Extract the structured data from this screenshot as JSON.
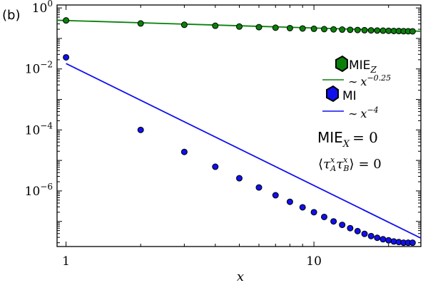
{
  "panel_label": "(b)",
  "chart_data": {
    "type": "scatter",
    "xscale": "log",
    "yscale": "log",
    "xlim": [
      0.92,
      27
    ],
    "ylim": [
      1.5e-08,
      1.25
    ],
    "xlabel": "x",
    "ylabel": "",
    "grid": false,
    "legend_position": "right",
    "x_ticks": [
      {
        "value": 1,
        "label": "1"
      },
      {
        "value": 10,
        "label": "10"
      }
    ],
    "y_ticks": [
      {
        "value": 1,
        "base": "10",
        "exp": "0"
      },
      {
        "value": 0.01,
        "base": "10",
        "exp": "-2"
      },
      {
        "value": 0.0001,
        "base": "10",
        "exp": "-4"
      },
      {
        "value": 1e-06,
        "base": "10",
        "exp": "-6"
      }
    ],
    "series": [
      {
        "name": "MIE_Z",
        "label_main": "MIE",
        "label_sub": "Z",
        "kind": "points",
        "color": "#0a800a",
        "edge": "#000000",
        "x": [
          1,
          2,
          3,
          4,
          5,
          6,
          7,
          8,
          9,
          10,
          11,
          12,
          13,
          14,
          15,
          16,
          17,
          18,
          19,
          20,
          21,
          22,
          23,
          24,
          25
        ],
        "y": [
          0.39,
          0.31,
          0.28,
          0.26,
          0.245,
          0.235,
          0.225,
          0.218,
          0.212,
          0.207,
          0.202,
          0.198,
          0.195,
          0.192,
          0.189,
          0.186,
          0.184,
          0.182,
          0.18,
          0.178,
          0.176,
          0.175,
          0.173,
          0.172,
          0.171
        ]
      },
      {
        "name": "fit_Z",
        "label_prefix": "∼",
        "label_base": "x",
        "label_exp": "−0.25",
        "kind": "line",
        "color": "#0a800a",
        "x": [
          0.92,
          27
        ],
        "y": [
          0.395,
          0.172
        ]
      },
      {
        "name": "MI",
        "label_main": "MI",
        "kind": "points",
        "color": "#1010ee",
        "edge": "#000000",
        "x": [
          1,
          2,
          3,
          4,
          5,
          6,
          7,
          8,
          9,
          10,
          11,
          12,
          13,
          14,
          15,
          16,
          17,
          18,
          19,
          20,
          21,
          22,
          23,
          24,
          25
        ],
        "y": [
          0.024,
          0.0001,
          1.9e-05,
          6.2e-06,
          2.6e-06,
          1.3e-06,
          7.2e-07,
          4.4e-07,
          2.9e-07,
          2e-07,
          1.4e-07,
          1e-07,
          7.7e-08,
          6e-08,
          4.8e-08,
          3.9e-08,
          3.3e-08,
          2.9e-08,
          2.6e-08,
          2.4e-08,
          2.2e-08,
          2.1e-08,
          2e-08,
          2e-08,
          2e-08
        ]
      },
      {
        "name": "fit_MI",
        "label_prefix": "∼",
        "label_base": "x",
        "label_exp": "−4",
        "kind": "line",
        "color": "#1010ee",
        "x": [
          1,
          27
        ],
        "y": [
          0.015,
          2.83e-08
        ]
      }
    ],
    "annotations": {
      "mie_x_main": "MIE",
      "mie_x_sub": "X",
      "mie_x_eq": "= 0",
      "corr_open": "⟨",
      "corr_tau": "τ",
      "corr_sup": "x",
      "corr_sub_a": "A",
      "corr_sub_b": "B",
      "corr_close": "⟩",
      "corr_eq": "= 0"
    }
  }
}
